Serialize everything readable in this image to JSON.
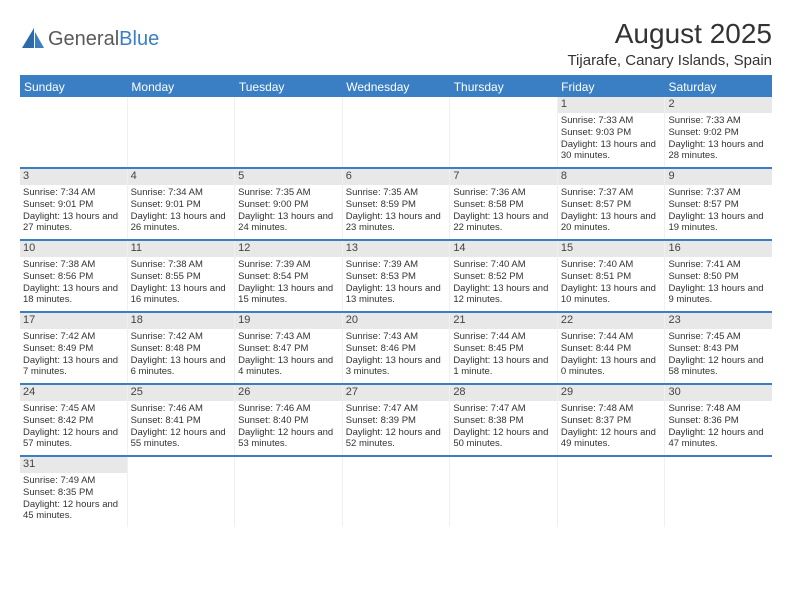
{
  "logo": {
    "text1": "General",
    "text2": "Blue"
  },
  "title": "August 2025",
  "subtitle": "Tijarafe, Canary Islands, Spain",
  "dayNames": [
    "Sunday",
    "Monday",
    "Tuesday",
    "Wednesday",
    "Thursday",
    "Friday",
    "Saturday"
  ],
  "colors": {
    "accent": "#3a7fc4",
    "daynum_bg": "#e8e8e8",
    "text": "#333333",
    "logo_gray": "#5a5a5a"
  },
  "weeks": [
    [
      null,
      null,
      null,
      null,
      null,
      {
        "n": "1",
        "sunrise": "Sunrise: 7:33 AM",
        "sunset": "Sunset: 9:03 PM",
        "daylight": "Daylight: 13 hours and 30 minutes."
      },
      {
        "n": "2",
        "sunrise": "Sunrise: 7:33 AM",
        "sunset": "Sunset: 9:02 PM",
        "daylight": "Daylight: 13 hours and 28 minutes."
      }
    ],
    [
      {
        "n": "3",
        "sunrise": "Sunrise: 7:34 AM",
        "sunset": "Sunset: 9:01 PM",
        "daylight": "Daylight: 13 hours and 27 minutes."
      },
      {
        "n": "4",
        "sunrise": "Sunrise: 7:34 AM",
        "sunset": "Sunset: 9:01 PM",
        "daylight": "Daylight: 13 hours and 26 minutes."
      },
      {
        "n": "5",
        "sunrise": "Sunrise: 7:35 AM",
        "sunset": "Sunset: 9:00 PM",
        "daylight": "Daylight: 13 hours and 24 minutes."
      },
      {
        "n": "6",
        "sunrise": "Sunrise: 7:35 AM",
        "sunset": "Sunset: 8:59 PM",
        "daylight": "Daylight: 13 hours and 23 minutes."
      },
      {
        "n": "7",
        "sunrise": "Sunrise: 7:36 AM",
        "sunset": "Sunset: 8:58 PM",
        "daylight": "Daylight: 13 hours and 22 minutes."
      },
      {
        "n": "8",
        "sunrise": "Sunrise: 7:37 AM",
        "sunset": "Sunset: 8:57 PM",
        "daylight": "Daylight: 13 hours and 20 minutes."
      },
      {
        "n": "9",
        "sunrise": "Sunrise: 7:37 AM",
        "sunset": "Sunset: 8:57 PM",
        "daylight": "Daylight: 13 hours and 19 minutes."
      }
    ],
    [
      {
        "n": "10",
        "sunrise": "Sunrise: 7:38 AM",
        "sunset": "Sunset: 8:56 PM",
        "daylight": "Daylight: 13 hours and 18 minutes."
      },
      {
        "n": "11",
        "sunrise": "Sunrise: 7:38 AM",
        "sunset": "Sunset: 8:55 PM",
        "daylight": "Daylight: 13 hours and 16 minutes."
      },
      {
        "n": "12",
        "sunrise": "Sunrise: 7:39 AM",
        "sunset": "Sunset: 8:54 PM",
        "daylight": "Daylight: 13 hours and 15 minutes."
      },
      {
        "n": "13",
        "sunrise": "Sunrise: 7:39 AM",
        "sunset": "Sunset: 8:53 PM",
        "daylight": "Daylight: 13 hours and 13 minutes."
      },
      {
        "n": "14",
        "sunrise": "Sunrise: 7:40 AM",
        "sunset": "Sunset: 8:52 PM",
        "daylight": "Daylight: 13 hours and 12 minutes."
      },
      {
        "n": "15",
        "sunrise": "Sunrise: 7:40 AM",
        "sunset": "Sunset: 8:51 PM",
        "daylight": "Daylight: 13 hours and 10 minutes."
      },
      {
        "n": "16",
        "sunrise": "Sunrise: 7:41 AM",
        "sunset": "Sunset: 8:50 PM",
        "daylight": "Daylight: 13 hours and 9 minutes."
      }
    ],
    [
      {
        "n": "17",
        "sunrise": "Sunrise: 7:42 AM",
        "sunset": "Sunset: 8:49 PM",
        "daylight": "Daylight: 13 hours and 7 minutes."
      },
      {
        "n": "18",
        "sunrise": "Sunrise: 7:42 AM",
        "sunset": "Sunset: 8:48 PM",
        "daylight": "Daylight: 13 hours and 6 minutes."
      },
      {
        "n": "19",
        "sunrise": "Sunrise: 7:43 AM",
        "sunset": "Sunset: 8:47 PM",
        "daylight": "Daylight: 13 hours and 4 minutes."
      },
      {
        "n": "20",
        "sunrise": "Sunrise: 7:43 AM",
        "sunset": "Sunset: 8:46 PM",
        "daylight": "Daylight: 13 hours and 3 minutes."
      },
      {
        "n": "21",
        "sunrise": "Sunrise: 7:44 AM",
        "sunset": "Sunset: 8:45 PM",
        "daylight": "Daylight: 13 hours and 1 minute."
      },
      {
        "n": "22",
        "sunrise": "Sunrise: 7:44 AM",
        "sunset": "Sunset: 8:44 PM",
        "daylight": "Daylight: 13 hours and 0 minutes."
      },
      {
        "n": "23",
        "sunrise": "Sunrise: 7:45 AM",
        "sunset": "Sunset: 8:43 PM",
        "daylight": "Daylight: 12 hours and 58 minutes."
      }
    ],
    [
      {
        "n": "24",
        "sunrise": "Sunrise: 7:45 AM",
        "sunset": "Sunset: 8:42 PM",
        "daylight": "Daylight: 12 hours and 57 minutes."
      },
      {
        "n": "25",
        "sunrise": "Sunrise: 7:46 AM",
        "sunset": "Sunset: 8:41 PM",
        "daylight": "Daylight: 12 hours and 55 minutes."
      },
      {
        "n": "26",
        "sunrise": "Sunrise: 7:46 AM",
        "sunset": "Sunset: 8:40 PM",
        "daylight": "Daylight: 12 hours and 53 minutes."
      },
      {
        "n": "27",
        "sunrise": "Sunrise: 7:47 AM",
        "sunset": "Sunset: 8:39 PM",
        "daylight": "Daylight: 12 hours and 52 minutes."
      },
      {
        "n": "28",
        "sunrise": "Sunrise: 7:47 AM",
        "sunset": "Sunset: 8:38 PM",
        "daylight": "Daylight: 12 hours and 50 minutes."
      },
      {
        "n": "29",
        "sunrise": "Sunrise: 7:48 AM",
        "sunset": "Sunset: 8:37 PM",
        "daylight": "Daylight: 12 hours and 49 minutes."
      },
      {
        "n": "30",
        "sunrise": "Sunrise: 7:48 AM",
        "sunset": "Sunset: 8:36 PM",
        "daylight": "Daylight: 12 hours and 47 minutes."
      }
    ],
    [
      {
        "n": "31",
        "sunrise": "Sunrise: 7:49 AM",
        "sunset": "Sunset: 8:35 PM",
        "daylight": "Daylight: 12 hours and 45 minutes."
      },
      null,
      null,
      null,
      null,
      null,
      null
    ]
  ]
}
